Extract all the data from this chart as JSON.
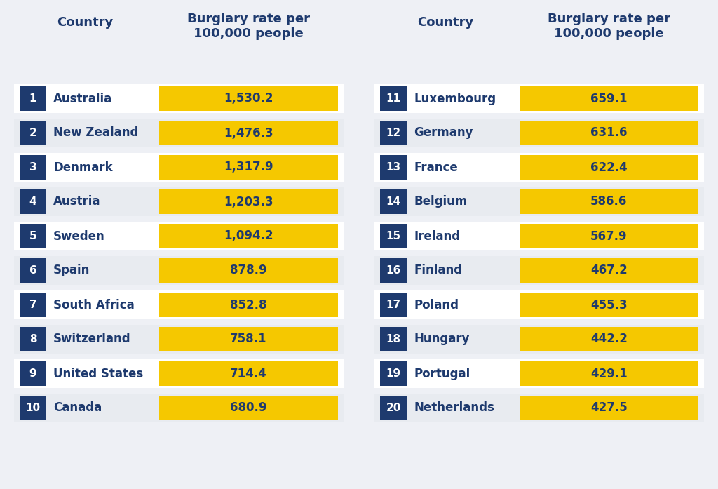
{
  "left_data": [
    {
      "rank": 1,
      "country": "Australia",
      "rate": "1,530.2"
    },
    {
      "rank": 2,
      "country": "New Zealand",
      "rate": "1,476.3"
    },
    {
      "rank": 3,
      "country": "Denmark",
      "rate": "1,317.9"
    },
    {
      "rank": 4,
      "country": "Austria",
      "rate": "1,203.3"
    },
    {
      "rank": 5,
      "country": "Sweden",
      "rate": "1,094.2"
    },
    {
      "rank": 6,
      "country": "Spain",
      "rate": "878.9"
    },
    {
      "rank": 7,
      "country": "South Africa",
      "rate": "852.8"
    },
    {
      "rank": 8,
      "country": "Switzerland",
      "rate": "758.1"
    },
    {
      "rank": 9,
      "country": "United States",
      "rate": "714.4"
    },
    {
      "rank": 10,
      "country": "Canada",
      "rate": "680.9"
    }
  ],
  "right_data": [
    {
      "rank": 11,
      "country": "Luxembourg",
      "rate": "659.1"
    },
    {
      "rank": 12,
      "country": "Germany",
      "rate": "631.6"
    },
    {
      "rank": 13,
      "country": "France",
      "rate": "622.4"
    },
    {
      "rank": 14,
      "country": "Belgium",
      "rate": "586.6"
    },
    {
      "rank": 15,
      "country": "Ireland",
      "rate": "567.9"
    },
    {
      "rank": 16,
      "country": "Finland",
      "rate": "467.2"
    },
    {
      "rank": 17,
      "country": "Poland",
      "rate": "455.3"
    },
    {
      "rank": 18,
      "country": "Hungary",
      "rate": "442.2"
    },
    {
      "rank": 19,
      "country": "Portugal",
      "rate": "429.1"
    },
    {
      "rank": 20,
      "country": "Netherlands",
      "rate": "427.5"
    }
  ],
  "bg_color": "#eef0f5",
  "rank_box_color": "#1e3a6e",
  "rank_text_color": "#ffffff",
  "country_text_color": "#1e3a6e",
  "rate_box_color": "#f5c800",
  "rate_text_color": "#1e3a6e",
  "row_bg_odd": "#ffffff",
  "row_bg_even": "#e8ebf0",
  "header_color": "#1e3a6e",
  "col_header_country": "Country",
  "col_header_rate": "Burglary rate per\n100,000 people",
  "header_fontsize": 13,
  "country_fontsize": 12,
  "rate_fontsize": 12,
  "rank_fontsize": 11
}
